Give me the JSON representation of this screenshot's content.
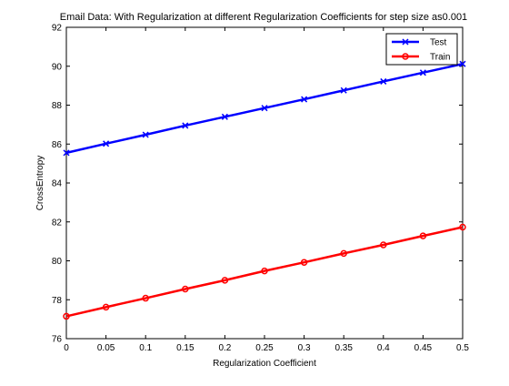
{
  "chart_data": {
    "type": "line",
    "title": "Email Data: With Regularization at different Regularization Coefficients for step size as0.001",
    "xlabel": "Regularization Coefficient",
    "ylabel": "CrossEntropy",
    "xlim": [
      0,
      0.5
    ],
    "ylim": [
      76,
      92
    ],
    "xticks": [
      "0",
      "0.05",
      "0.1",
      "0.15",
      "0.2",
      "0.25",
      "0.3",
      "0.35",
      "0.4",
      "0.45",
      "0.5"
    ],
    "yticks": [
      "76",
      "78",
      "80",
      "82",
      "84",
      "86",
      "88",
      "90",
      "92"
    ],
    "grid": false,
    "legend_position": "top-right",
    "x": [
      0,
      0.05,
      0.1,
      0.15,
      0.2,
      0.25,
      0.3,
      0.35,
      0.4,
      0.45,
      0.5
    ],
    "series": [
      {
        "name": "Test",
        "color": "#0000ff",
        "marker": "x",
        "values": [
          85.55,
          86.02,
          86.48,
          86.95,
          87.4,
          87.85,
          88.3,
          88.76,
          89.22,
          89.67,
          90.12
        ]
      },
      {
        "name": "Train",
        "color": "#ff0000",
        "marker": "o",
        "values": [
          77.15,
          77.62,
          78.08,
          78.55,
          79.0,
          79.48,
          79.92,
          80.38,
          80.82,
          81.28,
          81.73
        ]
      }
    ]
  }
}
